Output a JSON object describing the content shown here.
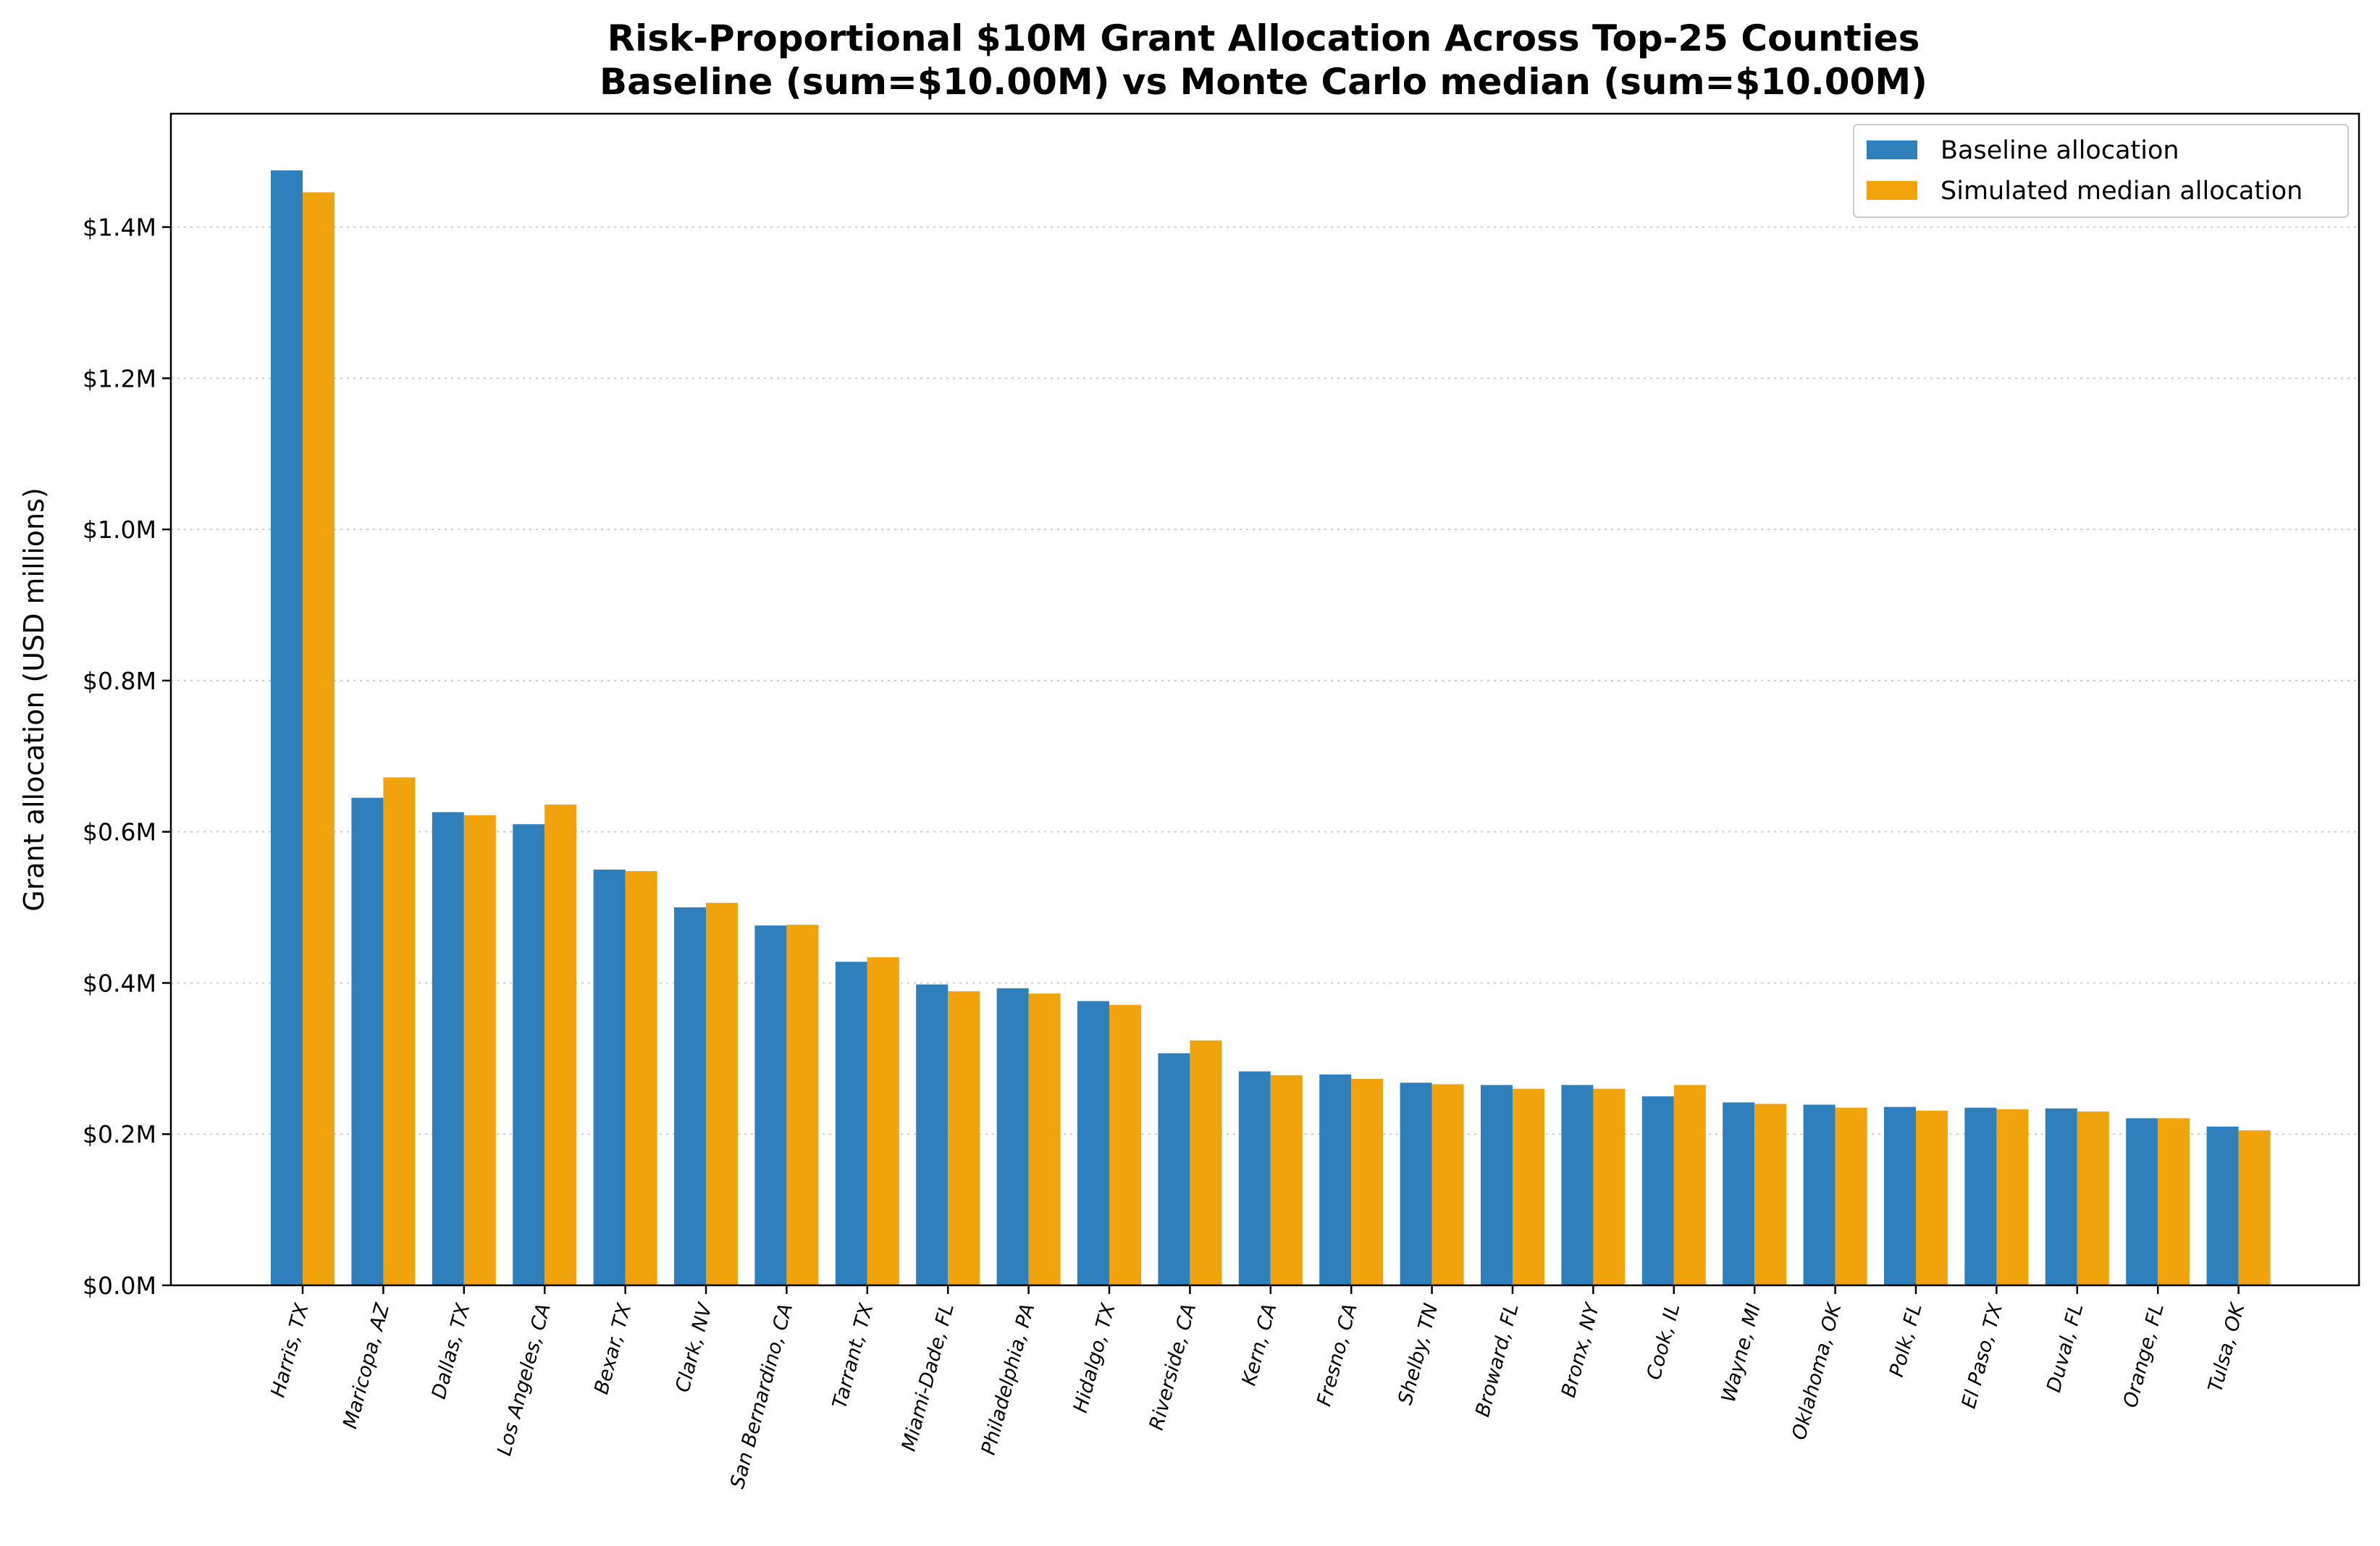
{
  "chart_data": {
    "type": "bar",
    "title": "Risk-Proportional $10M Grant Allocation Across Top-25 Counties",
    "subtitle": "Baseline (sum=$10.00M) vs Monte Carlo median (sum=$10.00M)",
    "xlabel": "",
    "ylabel": "Grant allocation (USD millions)",
    "ylim": [
      0,
      1.55
    ],
    "yticks": [
      0.0,
      0.2,
      0.4,
      0.6,
      0.8,
      1.0,
      1.2,
      1.4
    ],
    "ytick_labels": [
      "$0.0M",
      "$0.2M",
      "$0.4M",
      "$0.6M",
      "$0.8M",
      "$1.0M",
      "$1.2M",
      "$1.4M"
    ],
    "grid": "horizontal dotted",
    "legend_position": "top-right",
    "categories": [
      "Harris, TX",
      "Maricopa, AZ",
      "Dallas, TX",
      "Los Angeles, CA",
      "Bexar, TX",
      "Clark, NV",
      "San Bernardino, CA",
      "Tarrant, TX",
      "Miami-Dade, FL",
      "Philadelphia, PA",
      "Hidalgo, TX",
      "Riverside, CA",
      "Kern, CA",
      "Fresno, CA",
      "Shelby, TN",
      "Broward, FL",
      "Bronx, NY",
      "Cook, IL",
      "Wayne, MI",
      "Oklahoma, OK",
      "Polk, FL",
      "El Paso, TX",
      "Duval, FL",
      "Orange, FL",
      "Tulsa, OK"
    ],
    "series": [
      {
        "name": "Baseline allocation",
        "color": "#2e7fbc",
        "values": [
          1.475,
          0.645,
          0.626,
          0.61,
          0.55,
          0.5,
          0.476,
          0.428,
          0.398,
          0.393,
          0.376,
          0.307,
          0.283,
          0.279,
          0.268,
          0.265,
          0.265,
          0.25,
          0.242,
          0.239,
          0.236,
          0.235,
          0.234,
          0.221,
          0.21
        ]
      },
      {
        "name": "Simulated median allocation",
        "color": "#f0a30a",
        "values": [
          1.446,
          0.672,
          0.622,
          0.636,
          0.548,
          0.506,
          0.477,
          0.434,
          0.389,
          0.386,
          0.371,
          0.324,
          0.278,
          0.273,
          0.266,
          0.26,
          0.26,
          0.265,
          0.24,
          0.235,
          0.231,
          0.233,
          0.23,
          0.221,
          0.205
        ]
      }
    ]
  }
}
